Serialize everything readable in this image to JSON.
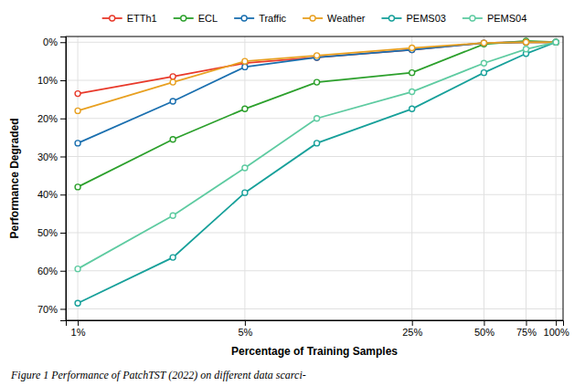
{
  "chart_data": {
    "type": "line",
    "xlabel": "Percentage of Training Samples",
    "ylabel": "Performance Degraded",
    "caption": "Figure 1  Performance of PatchTST (2022) on different data scarci-",
    "x": [
      1.0,
      0.75,
      0.5,
      0.25,
      0.1,
      0.05,
      0.025,
      0.01
    ],
    "log": "x",
    "xlim": [
      0.00891251,
      1.07152
    ],
    "xticks": [
      {
        "value": 1.0,
        "label": "100%"
      },
      {
        "value": 0.75,
        "label": "75%"
      },
      {
        "value": 0.5,
        "label": "50%"
      },
      {
        "value": 0.25,
        "label": "25%"
      },
      {
        "value": 0.05,
        "label": "5%"
      },
      {
        "value": 0.01,
        "label": "1%"
      }
    ],
    "ylim": [
      0.73,
      -0.015
    ],
    "yticks": [
      {
        "value": 0.0,
        "label": "0%"
      },
      {
        "value": 0.1,
        "label": "10%"
      },
      {
        "value": 0.2,
        "label": "20%"
      },
      {
        "value": 0.3,
        "label": "30%"
      },
      {
        "value": 0.4,
        "label": "40%"
      },
      {
        "value": 0.5,
        "label": "50%"
      },
      {
        "value": 0.6,
        "label": "60%"
      },
      {
        "value": 0.7,
        "label": "70%"
      }
    ],
    "grid": true,
    "legend": "top",
    "marker": "circle",
    "series": [
      {
        "name": "ETTh1",
        "color": "#e8392a",
        "values": [
          0.0,
          0.0,
          0.002,
          0.02,
          0.04,
          0.055,
          0.09,
          0.135
        ]
      },
      {
        "name": "ECL",
        "color": "#2ca02c",
        "values": [
          0.0,
          -0.003,
          0.005,
          0.08,
          0.105,
          0.175,
          0.255,
          0.38
        ]
      },
      {
        "name": "Traffic",
        "color": "#1a6faf",
        "values": [
          0.0,
          0.0,
          0.002,
          0.02,
          0.04,
          0.065,
          0.155,
          0.265
        ]
      },
      {
        "name": "Weather",
        "color": "#e8a020",
        "values": [
          0.0,
          0.0,
          0.002,
          0.015,
          0.035,
          0.05,
          0.105,
          0.18
        ]
      },
      {
        "name": "PEMS03",
        "color": "#17a09a",
        "values": [
          0.0,
          0.03,
          0.08,
          0.175,
          0.265,
          0.395,
          0.565,
          0.685
        ]
      },
      {
        "name": "PEMS04",
        "color": "#5ecba1",
        "values": [
          0.0,
          0.018,
          0.055,
          0.13,
          0.2,
          0.33,
          0.455,
          0.595
        ]
      }
    ]
  }
}
